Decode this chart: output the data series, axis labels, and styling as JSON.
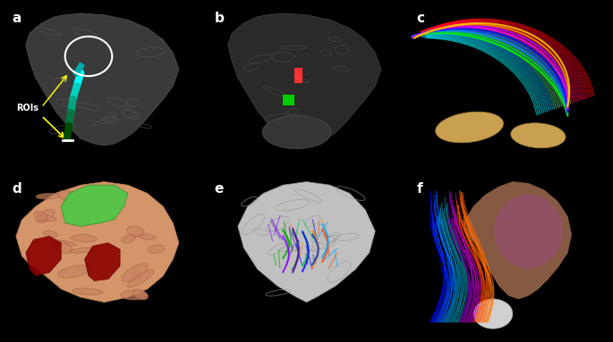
{
  "background_color": "#000000",
  "panel_labels": [
    "a",
    "b",
    "c",
    "d",
    "e",
    "f"
  ],
  "label_color": "#ffffff",
  "label_fontsize": 11,
  "label_fontweight": "bold",
  "roi_text": "ROIs",
  "roi_text_color": "#ffffff",
  "roi_text_fontsize": 8,
  "layout": {
    "rows": 2,
    "cols": 3,
    "figwidth": 6.85,
    "figheight": 3.83
  },
  "panel_positions": [
    {
      "label": "a",
      "row": 0,
      "col": 0
    },
    {
      "label": "b",
      "row": 0,
      "col": 1
    },
    {
      "label": "c",
      "row": 0,
      "col": 2
    },
    {
      "label": "d",
      "row": 1,
      "col": 0
    },
    {
      "label": "e",
      "row": 1,
      "col": 1
    },
    {
      "label": "f",
      "row": 1,
      "col": 2
    }
  ],
  "panel_a": {
    "bg": "#000000",
    "brain_color": "#707070",
    "roi_circle_color": "#ffffff",
    "tract_colors": [
      "#00bfff",
      "#0000ff",
      "#008000"
    ],
    "arrow_color": "#ffff00",
    "roi_label_color": "#ffffff"
  },
  "panel_b": {
    "bg": "#000000",
    "brain_color": "#606060",
    "marker1_color": "#ff4444",
    "marker2_color": "#00cc00"
  },
  "panel_c": {
    "bg": "#000000",
    "tract_colors": [
      "#0000ff",
      "#00ff00",
      "#ff00ff",
      "#ffaa00"
    ],
    "structure_color": "#c8a050"
  },
  "panel_d": {
    "bg": "#000000",
    "brain_color": "#d4956a",
    "green_region_color": "#44cc44",
    "red_region_color": "#8b0000"
  },
  "panel_e": {
    "bg": "#000000",
    "brain_color": "#c0c0c0",
    "tract_colors": [
      "#00cc00",
      "#ff8800",
      "#8800ff",
      "#0000ff"
    ]
  },
  "panel_f": {
    "bg": "#000000",
    "brain_color": "#c08060",
    "tract_colors": [
      "#0000ff",
      "#ff0000",
      "#ff00ff",
      "#ffaa00"
    ],
    "structure_color": "#d0d0d0"
  }
}
